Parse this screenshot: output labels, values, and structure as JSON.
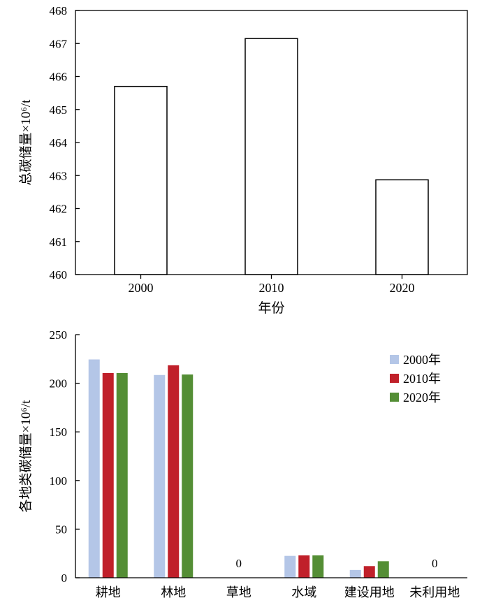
{
  "chart_data": [
    {
      "type": "bar",
      "categories": [
        "2000",
        "2010",
        "2020"
      ],
      "values": [
        465.7,
        467.15,
        462.87
      ],
      "xlabel": "年份",
      "ylabel": "总碳储量×10⁶/t",
      "ylim": [
        460,
        468
      ],
      "yticks": [
        460,
        461,
        462,
        463,
        464,
        465,
        466,
        467,
        468
      ],
      "bar_fill": "#ffffff",
      "bar_stroke": "#000000",
      "grid": false
    },
    {
      "type": "bar",
      "categories": [
        "耕地",
        "林地",
        "草地",
        "水域",
        "建设用地",
        "未利用地"
      ],
      "series": [
        {
          "name": "2000年",
          "color": "#b4c6e7",
          "values": [
            224.5,
            208.5,
            0,
            22.5,
            8,
            0
          ]
        },
        {
          "name": "2010年",
          "color": "#c0202a",
          "values": [
            210.5,
            218.5,
            0,
            23,
            12,
            0
          ]
        },
        {
          "name": "2020年",
          "color": "#548e35",
          "values": [
            210.5,
            209,
            0,
            23,
            17,
            0
          ]
        }
      ],
      "zero_labels": [
        {
          "category": "草地",
          "text": "0"
        },
        {
          "category": "未利用地",
          "text": "0"
        }
      ],
      "xlabel": "",
      "ylabel": "各地类碳储量×10⁶/t",
      "ylim": [
        0,
        250
      ],
      "yticks": [
        0,
        50,
        100,
        150,
        200,
        250
      ],
      "legend_position": "top-right",
      "grid": false
    }
  ]
}
